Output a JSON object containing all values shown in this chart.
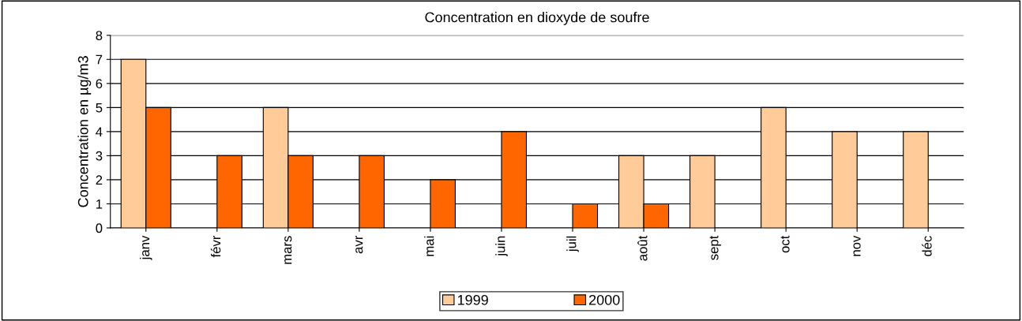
{
  "chart_data": {
    "type": "bar",
    "title": "Concentration en dioxyde de soufre",
    "ylabel": "Concentration en µg/m3",
    "categories": [
      "janv",
      "févr",
      "mars",
      "avr",
      "mai",
      "juin",
      "juil",
      "août",
      "sept",
      "oct",
      "nov",
      "déc"
    ],
    "series": [
      {
        "name": "1999",
        "color": "#ffcc99",
        "values": [
          7,
          null,
          5,
          null,
          null,
          null,
          null,
          3,
          3,
          5,
          4,
          4
        ]
      },
      {
        "name": "2000",
        "color": "#ff6600",
        "values": [
          5,
          3,
          3,
          3,
          2,
          4,
          1,
          1,
          null,
          null,
          null,
          null
        ]
      }
    ],
    "ylim": [
      0,
      8
    ],
    "yticks": [
      0,
      1,
      2,
      3,
      4,
      5,
      6,
      7,
      8
    ],
    "grid": "y",
    "legend": "bottom"
  }
}
